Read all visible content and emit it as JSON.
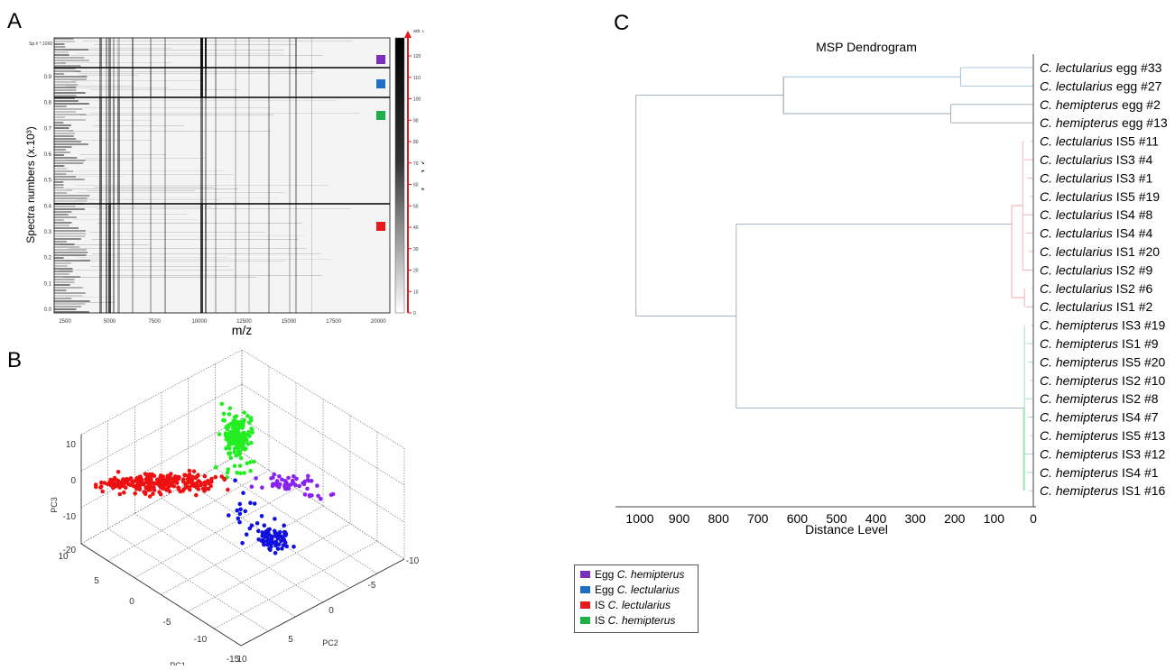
{
  "panels": {
    "a": {
      "letter": "A",
      "ylabel": "Spectra numbers (x.10³)",
      "xlabel": "m/z",
      "corner_label": "Sp.# *.1000",
      "colorbar_unit": "arb. u.",
      "colorbar_label": "Intensity [a.u]",
      "x_ticks": [
        "2500",
        "5000",
        "7500",
        "10000",
        "12500",
        "15000",
        "17500",
        "20000"
      ],
      "y_ticks": [
        "0.9",
        "0.8",
        "0.7",
        "0.6",
        "0.5",
        "0.4",
        "0.3",
        "0.2",
        "0.1",
        "0.0"
      ],
      "cb_ticks": [
        "120",
        "110",
        "100",
        "90",
        "80",
        "70",
        "60",
        "50",
        "40",
        "30",
        "20",
        "10",
        "0"
      ],
      "markers": [
        {
          "group": "Egg C. hemipterus",
          "color": "#7a2fbd"
        },
        {
          "group": "Egg C. lectularius",
          "color": "#1f6fc4"
        },
        {
          "group": "IS C. hemipterus",
          "color": "#1fb04a"
        },
        {
          "group": "IS C. lectularius",
          "color": "#e8191c"
        }
      ]
    },
    "b": {
      "letter": "B",
      "pc1_label": "PC1",
      "pc2_label": "PC2",
      "pc3_label": "PC3",
      "pc3_ticks": [
        "10",
        "0",
        "-10",
        "-20"
      ],
      "pc1_ticks": [
        "10",
        "5",
        "0",
        "-5",
        "-10",
        "-15"
      ],
      "pc2_ticks": [
        "10",
        "5",
        "0",
        "-5",
        "-10"
      ]
    },
    "c": {
      "letter": "C",
      "title": "MSP Dendrogram",
      "xlabel": "Distance Level",
      "x_ticks": [
        "1000",
        "900",
        "800",
        "700",
        "600",
        "500",
        "400",
        "300",
        "200",
        "100",
        "0"
      ]
    }
  },
  "chart_data": {
    "type": "dendrogram",
    "title": "MSP Dendrogram",
    "xlabel": "Distance Level",
    "xlim": [
      1050,
      0
    ],
    "leaves": [
      {
        "species": "C. lectularius",
        "rest": " egg #33",
        "group": "egg-lect"
      },
      {
        "species": "C. lectularius",
        "rest": " egg #27",
        "group": "egg-lect"
      },
      {
        "species": "C. hemipterus",
        "rest": " egg #2",
        "group": "egg-hemi"
      },
      {
        "species": "C. hemipterus",
        "rest": " egg #13",
        "group": "egg-hemi"
      },
      {
        "species": "C. lectularius",
        "rest": " IS5 #11",
        "group": "is-lect"
      },
      {
        "species": "C. lectularius",
        "rest": " IS3 #4",
        "group": "is-lect"
      },
      {
        "species": "C. lectularius",
        "rest": " IS3 #1",
        "group": "is-lect"
      },
      {
        "species": "C. lectularius",
        "rest": " IS5 #19",
        "group": "is-lect"
      },
      {
        "species": "C. lectularius",
        "rest": " IS4 #8",
        "group": "is-lect"
      },
      {
        "species": "C. lectularius",
        "rest": " IS4 #4",
        "group": "is-lect"
      },
      {
        "species": "C. lectularius",
        "rest": " IS1 #20",
        "group": "is-lect"
      },
      {
        "species": "C. lectularius",
        "rest": " IS2 #9",
        "group": "is-lect"
      },
      {
        "species": "C. lectularius",
        "rest": " IS2 #6",
        "group": "is-lect"
      },
      {
        "species": "C. lectularius",
        "rest": " IS1 #2",
        "group": "is-lect"
      },
      {
        "species": "C. hemipterus",
        "rest": " IS3 #19",
        "group": "is-hemi"
      },
      {
        "species": "C. hemipterus",
        "rest": " IS1 #9",
        "group": "is-hemi"
      },
      {
        "species": "C. hemipterus",
        "rest": " IS5 #20",
        "group": "is-hemi"
      },
      {
        "species": "C. hemipterus",
        "rest": " IS2 #10",
        "group": "is-hemi"
      },
      {
        "species": "C. hemipterus",
        "rest": " IS2 #8",
        "group": "is-hemi"
      },
      {
        "species": "C. hemipterus",
        "rest": " IS4 #7",
        "group": "is-hemi"
      },
      {
        "species": "C. hemipterus",
        "rest": " IS5 #13",
        "group": "is-hemi"
      },
      {
        "species": "C. hemipterus",
        "rest": " IS3 #12",
        "group": "is-hemi"
      },
      {
        "species": "C. hemipterus",
        "rest": " IS4 #1",
        "group": "is-hemi"
      },
      {
        "species": "C. hemipterus",
        "rest": " IS1 #16",
        "group": "is-hemi"
      }
    ],
    "merges": [
      {
        "left": [
          0
        ],
        "right": [
          1
        ],
        "distance": 185,
        "color": "#8fb8d8"
      },
      {
        "left": [
          2
        ],
        "right": [
          3
        ],
        "distance": 210,
        "color": "#9aa8b4"
      },
      {
        "left": [
          0,
          1
        ],
        "right": [
          2,
          3
        ],
        "distance": 635,
        "color": "#7f8c96"
      },
      {
        "left": [
          4,
          5,
          6,
          7,
          8,
          9,
          10,
          11
        ],
        "right": [
          12,
          13
        ],
        "distance": 55,
        "color": "#f0a0a0"
      },
      {
        "left": [
          14,
          15,
          16,
          17,
          18,
          19,
          20,
          21,
          22,
          23
        ],
        "right": [],
        "distance": 25,
        "color": "#90d8a8"
      },
      {
        "left": [
          4,
          5,
          6,
          7,
          8,
          9,
          10,
          11,
          12,
          13
        ],
        "right": [
          14,
          15,
          16,
          17,
          18,
          19,
          20,
          21,
          22,
          23
        ],
        "distance": 755,
        "color": "#9aa8b4"
      },
      {
        "left": [
          0,
          1,
          2,
          3
        ],
        "right": [
          4,
          5,
          6,
          7,
          8,
          9,
          10,
          11,
          12,
          13,
          14,
          15,
          16,
          17,
          18,
          19,
          20,
          21,
          22,
          23
        ],
        "distance": 1010,
        "color": "#9aa8b4"
      }
    ],
    "group_colors": {
      "egg-lect": "#8fb8d8",
      "egg-hemi": "#9aa8b4",
      "is-lect": "#f0a0a0",
      "is-hemi": "#90d8a8"
    }
  },
  "legend": {
    "items": [
      {
        "prefix": "Egg ",
        "species": "C. hemipterus",
        "color": "#7a2fbd"
      },
      {
        "prefix": "Egg ",
        "species": "C. lectularius",
        "color": "#1f6fc4"
      },
      {
        "prefix": "IS ",
        "species": "C. lectularius",
        "color": "#e8191c"
      },
      {
        "prefix": "IS ",
        "species": "C. hemipterus",
        "color": "#1fb04a"
      }
    ]
  },
  "pca": {
    "groups": [
      {
        "name": "IS C. hemipterus",
        "color": "#22ee22"
      },
      {
        "name": "IS C. lectularius",
        "color": "#ee1111"
      },
      {
        "name": "Egg C. hemipterus",
        "color": "#8822ee"
      },
      {
        "name": "Egg C. lectularius",
        "color": "#1111dd"
      }
    ]
  }
}
